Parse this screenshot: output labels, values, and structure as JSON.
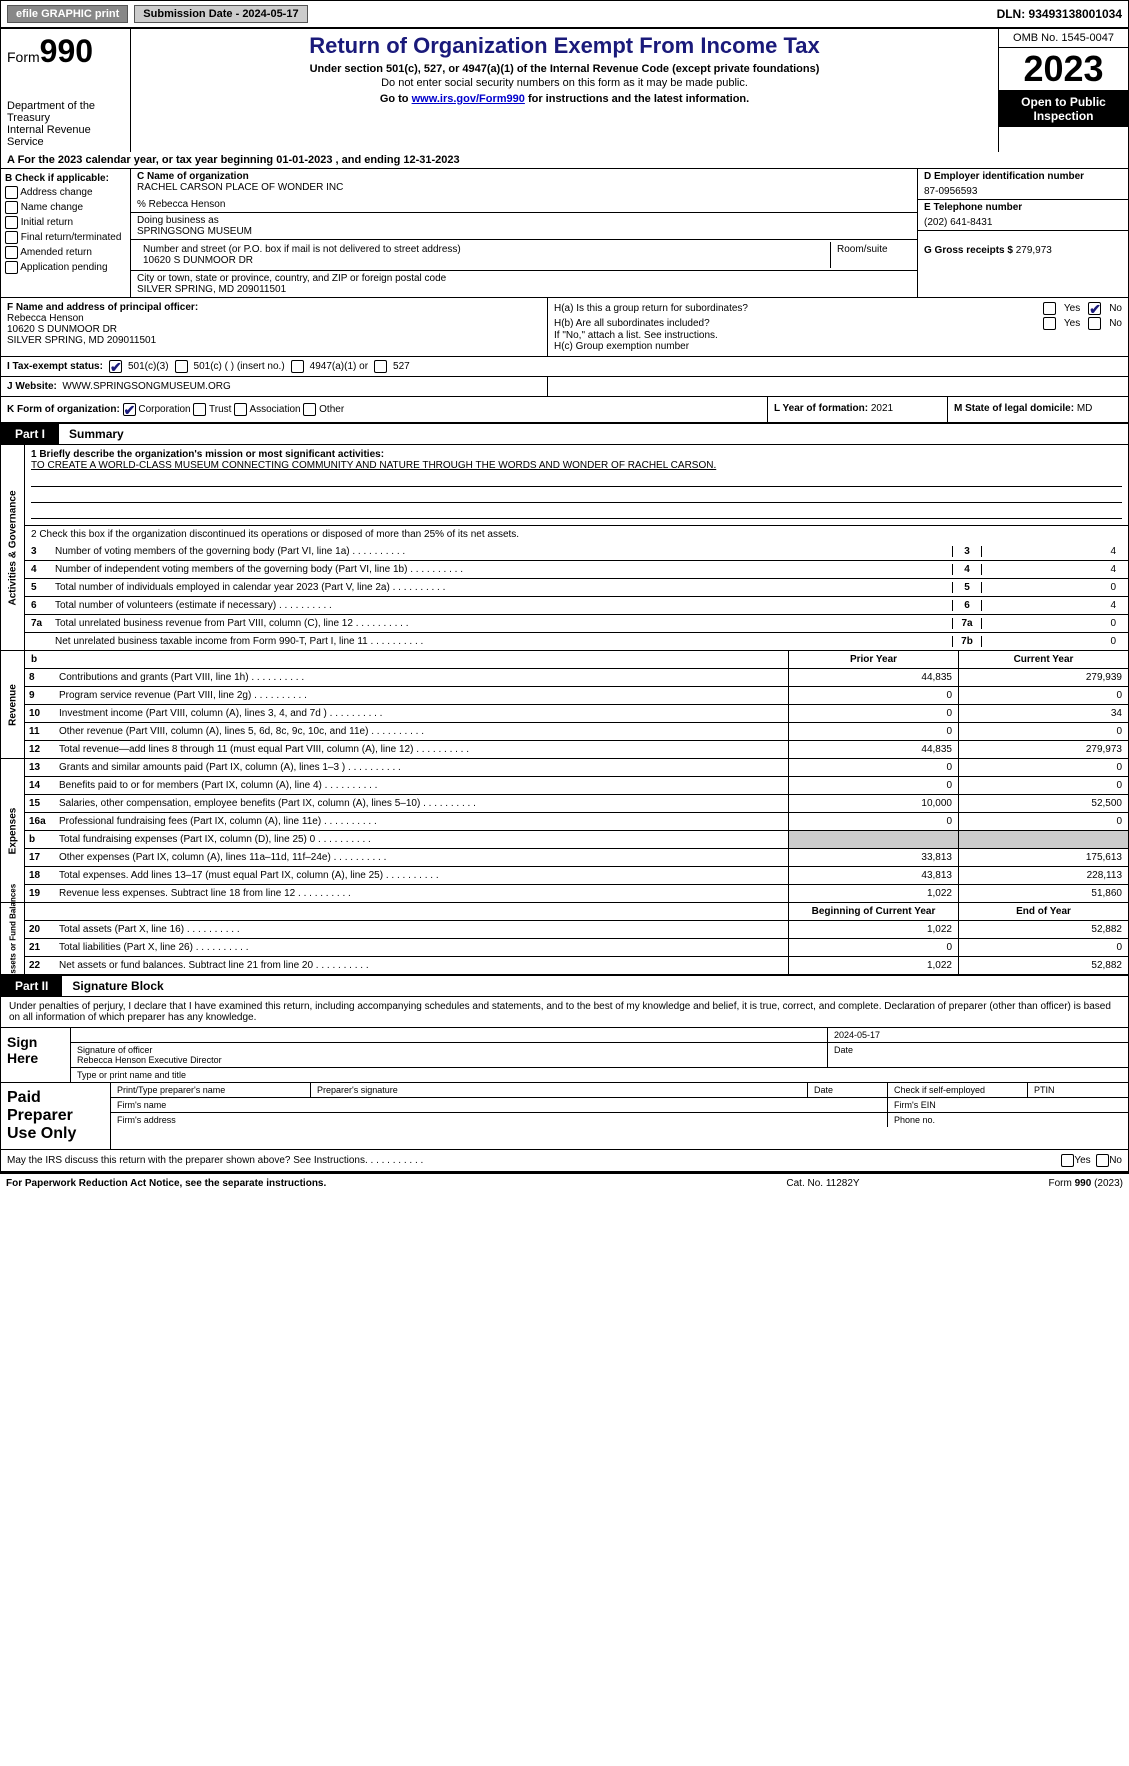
{
  "colors": {
    "accent": "#1a1a7a",
    "shade": "#cccccc",
    "link": "#0000cc"
  },
  "topbar": {
    "efile": "efile GRAPHIC print",
    "submission": "Submission Date - 2024-05-17",
    "dln": "DLN: 93493138001034"
  },
  "header": {
    "form_prefix": "Form",
    "form_number": "990",
    "dept1": "Department of the Treasury",
    "dept2": "Internal Revenue Service",
    "title": "Return of Organization Exempt From Income Tax",
    "sub1": "Under section 501(c), 527, or 4947(a)(1) of the Internal Revenue Code (except private foundations)",
    "sub2": "Do not enter social security numbers on this form as it may be made public.",
    "goto_prefix": "Go to ",
    "goto_link": "www.irs.gov/Form990",
    "goto_suffix": " for instructions and the latest information.",
    "omb": "OMB No. 1545-0047",
    "year": "2023",
    "open1": "Open to Public",
    "open2": "Inspection"
  },
  "lineA": {
    "prefix": "A For the 2023 calendar year, or tax year beginning ",
    "begin": "01-01-2023",
    "mid": " , and ending ",
    "end": "12-31-2023"
  },
  "b": {
    "label": "B Check if applicable:",
    "items": [
      "Address change",
      "Name change",
      "Initial return",
      "Final return/terminated",
      "Amended return",
      "Application pending"
    ]
  },
  "c": {
    "name_label": "C Name of organization",
    "name": "RACHEL CARSON PLACE OF WONDER INC",
    "care_of": "% Rebecca Henson",
    "dba_label": "Doing business as",
    "dba": "SPRINGSONG MUSEUM",
    "addr_label": "Number and street (or P.O. box if mail is not delivered to street address)",
    "addr": "10620 S DUNMOOR DR",
    "room_label": "Room/suite",
    "city_label": "City or town, state or province, country, and ZIP or foreign postal code",
    "city": "SILVER SPRING, MD  209011501"
  },
  "d": {
    "label": "D Employer identification number",
    "value": "87-0956593"
  },
  "e": {
    "label": "E Telephone number",
    "value": "(202) 641-8431"
  },
  "g": {
    "label": "G Gross receipts $",
    "value": "279,973"
  },
  "f": {
    "label": "F  Name and address of principal officer:",
    "name": "Rebecca Henson",
    "addr": "10620 S DUNMOOR DR",
    "city": "SILVER SPRING, MD  209011501"
  },
  "h": {
    "ha": "H(a)  Is this a group return for subordinates?",
    "hb": "H(b)  Are all subordinates included?",
    "hb_note": "If \"No,\" attach a list. See instructions.",
    "hc": "H(c)  Group exemption number",
    "yes": "Yes",
    "no": "No"
  },
  "i": {
    "label": "I  Tax-exempt status:",
    "opt1": "501(c)(3)",
    "opt2": "501(c) (  ) (insert no.)",
    "opt3": "4947(a)(1) or",
    "opt4": "527"
  },
  "j": {
    "label": "J  Website:",
    "value": "WWW.SPRINGSONGMUSEUM.ORG"
  },
  "k": {
    "label": "K Form of organization:",
    "corp": "Corporation",
    "trust": "Trust",
    "assoc": "Association",
    "other": "Other"
  },
  "l": {
    "label": "L Year of formation:",
    "value": "2021"
  },
  "m": {
    "label": "M State of legal domicile:",
    "value": "MD"
  },
  "part1": {
    "tab": "Part I",
    "title": "Summary"
  },
  "briefly": {
    "prefix": "1  Briefly describe the organization's mission or most significant activities:",
    "text": "TO CREATE A WORLD-CLASS MUSEUM CONNECTING COMMUNITY AND NATURE THROUGH THE WORDS AND WONDER OF RACHEL CARSON."
  },
  "gov": {
    "label": "Activities & Governance",
    "line2": "2   Check this box       if the organization discontinued its operations or disposed of more than 25% of its net assets.",
    "lines": [
      {
        "n": "3",
        "t": "Number of voting members of the governing body (Part VI, line 1a)",
        "box": "3",
        "v": "4"
      },
      {
        "n": "4",
        "t": "Number of independent voting members of the governing body (Part VI, line 1b)",
        "box": "4",
        "v": "4"
      },
      {
        "n": "5",
        "t": "Total number of individuals employed in calendar year 2023 (Part V, line 2a)",
        "box": "5",
        "v": "0"
      },
      {
        "n": "6",
        "t": "Total number of volunteers (estimate if necessary)",
        "box": "6",
        "v": "4"
      },
      {
        "n": "7a",
        "t": "Total unrelated business revenue from Part VIII, column (C), line 12",
        "box": "7a",
        "v": "0"
      },
      {
        "n": "",
        "t": "Net unrelated business taxable income from Form 990-T, Part I, line 11",
        "box": "7b",
        "v": "0"
      }
    ]
  },
  "rev": {
    "label": "Revenue",
    "hdr_prior": "Prior Year",
    "hdr_current": "Current Year",
    "lines": [
      {
        "n": "8",
        "t": "Contributions and grants (Part VIII, line 1h)",
        "p": "44,835",
        "c": "279,939"
      },
      {
        "n": "9",
        "t": "Program service revenue (Part VIII, line 2g)",
        "p": "0",
        "c": "0"
      },
      {
        "n": "10",
        "t": "Investment income (Part VIII, column (A), lines 3, 4, and 7d )",
        "p": "0",
        "c": "34"
      },
      {
        "n": "11",
        "t": "Other revenue (Part VIII, column (A), lines 5, 6d, 8c, 9c, 10c, and 11e)",
        "p": "0",
        "c": "0"
      },
      {
        "n": "12",
        "t": "Total revenue—add lines 8 through 11 (must equal Part VIII, column (A), line 12)",
        "p": "44,835",
        "c": "279,973"
      }
    ]
  },
  "exp": {
    "label": "Expenses",
    "lines": [
      {
        "n": "13",
        "t": "Grants and similar amounts paid (Part IX, column (A), lines 1–3 )",
        "p": "0",
        "c": "0"
      },
      {
        "n": "14",
        "t": "Benefits paid to or for members (Part IX, column (A), line 4)",
        "p": "0",
        "c": "0"
      },
      {
        "n": "15",
        "t": "Salaries, other compensation, employee benefits (Part IX, column (A), lines 5–10)",
        "p": "10,000",
        "c": "52,500"
      },
      {
        "n": "16a",
        "t": "Professional fundraising fees (Part IX, column (A), line 11e)",
        "p": "0",
        "c": "0"
      },
      {
        "n": "b",
        "t": "Total fundraising expenses (Part IX, column (D), line 25) 0",
        "p": "",
        "c": "",
        "shade": true
      },
      {
        "n": "17",
        "t": "Other expenses (Part IX, column (A), lines 11a–11d, 11f–24e)",
        "p": "33,813",
        "c": "175,613"
      },
      {
        "n": "18",
        "t": "Total expenses. Add lines 13–17 (must equal Part IX, column (A), line 25)",
        "p": "43,813",
        "c": "228,113"
      },
      {
        "n": "19",
        "t": "Revenue less expenses. Subtract line 18 from line 12",
        "p": "1,022",
        "c": "51,860"
      }
    ]
  },
  "net": {
    "label": "Net Assets or Fund Balances",
    "hdr_begin": "Beginning of Current Year",
    "hdr_end": "End of Year",
    "lines": [
      {
        "n": "20",
        "t": "Total assets (Part X, line 16)",
        "p": "1,022",
        "c": "52,882"
      },
      {
        "n": "21",
        "t": "Total liabilities (Part X, line 26)",
        "p": "0",
        "c": "0"
      },
      {
        "n": "22",
        "t": "Net assets or fund balances. Subtract line 21 from line 20",
        "p": "1,022",
        "c": "52,882"
      }
    ]
  },
  "part2": {
    "tab": "Part II",
    "title": "Signature Block"
  },
  "sig": {
    "intro": "Under penalties of perjury, I declare that I have examined this return, including accompanying schedules and statements, and to the best of my knowledge and belief, it is true, correct, and complete. Declaration of preparer (other than officer) is based on all information of which preparer has any knowledge.",
    "sign_here": "Sign Here",
    "date": "2024-05-17",
    "sig_officer": "Signature of officer",
    "officer_name": "Rebecca Henson Executive Director",
    "type_name": "Type or print name and title",
    "date_label": "Date"
  },
  "prep": {
    "label": "Paid Preparer Use Only",
    "print_name": "Print/Type preparer's name",
    "prep_sig": "Preparer's signature",
    "date": "Date",
    "check_self": "Check        if self-employed",
    "ptin": "PTIN",
    "firm_name": "Firm's name",
    "firm_ein": "Firm's EIN",
    "firm_addr": "Firm's address",
    "phone": "Phone no."
  },
  "may": {
    "text": "May the IRS discuss this return with the preparer shown above? See Instructions.",
    "yes": "Yes",
    "no": "No"
  },
  "footer": {
    "left": "For Paperwork Reduction Act Notice, see the separate instructions.",
    "mid": "Cat. No. 11282Y",
    "right_prefix": "Form ",
    "right_form": "990",
    "right_suffix": " (2023)"
  }
}
